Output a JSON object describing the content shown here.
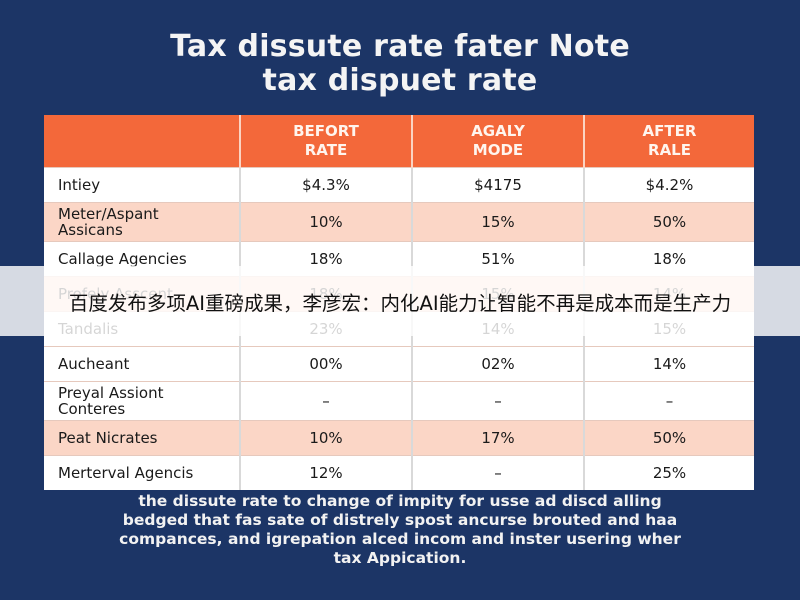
{
  "title": {
    "line1": "Tax dissute rate fater Note",
    "line2": "tax dispuet rate"
  },
  "table": {
    "headers": [
      "",
      "BEFORT\nRATE",
      "AGALY\nMODE",
      "AFTER\nRALE"
    ],
    "rows": [
      {
        "label": "Intiey",
        "values": [
          "$4.3%",
          "$4175",
          "$4.2%"
        ],
        "style": "white"
      },
      {
        "label": "Meter/Aspant\nAssicans",
        "values": [
          "10%",
          "15%",
          "50%"
        ],
        "style": "alt"
      },
      {
        "label": "Callage Agencies",
        "values": [
          "18%",
          "51%",
          "18%"
        ],
        "style": "white"
      },
      {
        "label": "Profely Asscent",
        "values": [
          "18%",
          "15%",
          "14%"
        ],
        "style": "alt"
      },
      {
        "label": "Tandalis",
        "values": [
          "23%",
          "14%",
          "15%"
        ],
        "style": "white"
      },
      {
        "label": "Aucheant",
        "values": [
          "00%",
          "02%",
          "14%"
        ],
        "style": "white"
      },
      {
        "label": "Preyal Assiont\nConteres",
        "values": [
          "–",
          "–",
          "–"
        ],
        "style": "white"
      },
      {
        "label": "Peat Nicrates",
        "values": [
          "10%",
          "17%",
          "50%"
        ],
        "style": "alt"
      },
      {
        "label": "Merterval Agencis",
        "values": [
          "12%",
          "–",
          "25%"
        ],
        "style": "white"
      }
    ]
  },
  "footnote": {
    "line1": "the dissute rate to change of impity for usse ad discd alling",
    "line2": "bedged that fas sate of distrely spost ancurse brouted and haa",
    "line3": "compances, and igrepation alced incom and inster usering wher",
    "line4": "tax Appication."
  },
  "overlay": {
    "text": "百度发布多项AI重磅成果，李彦宏：内化AI能力让智能不再是成本而是生产力"
  },
  "colors": {
    "background": "#1c3566",
    "header": "#f3683a",
    "alt_row": "#fbd6c6"
  }
}
